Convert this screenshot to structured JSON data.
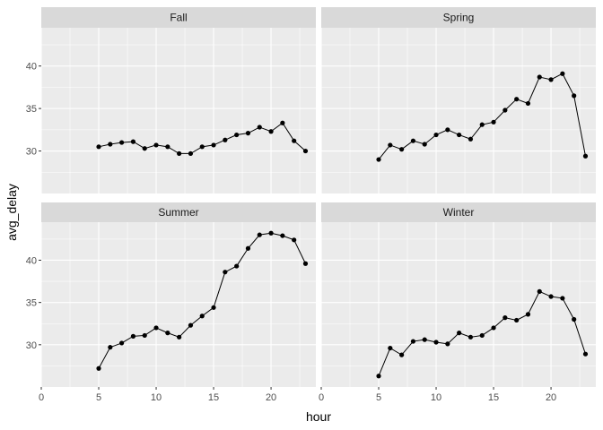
{
  "colors": {
    "panel_bg": "#EBEBEB",
    "strip_bg": "#D9D9D9",
    "grid_major": "#FFFFFF",
    "line": "#000000",
    "tick": "#333333"
  },
  "chart_data": {
    "type": "line",
    "facet": "wrap",
    "xlabel": "hour",
    "ylabel": "avg_delay",
    "xlim": [
      0,
      23.9
    ],
    "ylim": [
      25,
      44.5
    ],
    "xticks": [
      0,
      5,
      10,
      15,
      20
    ],
    "yticks": [
      30,
      35,
      40
    ],
    "grid": true,
    "markers": "points",
    "panels": [
      {
        "name": "Fall",
        "x": [
          5,
          6,
          7,
          8,
          9,
          10,
          11,
          12,
          13,
          14,
          15,
          16,
          17,
          18,
          19,
          20,
          21,
          22,
          23
        ],
        "y": [
          30.5,
          30.8,
          31.0,
          31.1,
          30.3,
          30.7,
          30.5,
          29.7,
          29.7,
          30.5,
          30.7,
          31.3,
          31.9,
          32.1,
          32.8,
          32.3,
          33.3,
          31.2,
          30.0
        ]
      },
      {
        "name": "Spring",
        "x": [
          5,
          6,
          7,
          8,
          9,
          10,
          11,
          12,
          13,
          14,
          15,
          16,
          17,
          18,
          19,
          20,
          21,
          22,
          23
        ],
        "y": [
          29.0,
          30.7,
          30.2,
          31.2,
          30.8,
          31.9,
          32.5,
          31.9,
          31.4,
          33.1,
          33.4,
          34.8,
          36.1,
          35.6,
          38.7,
          38.4,
          39.1,
          36.5,
          29.4
        ]
      },
      {
        "name": "Summer",
        "x": [
          5,
          6,
          7,
          8,
          9,
          10,
          11,
          12,
          13,
          14,
          15,
          16,
          17,
          18,
          19,
          20,
          21,
          22,
          23
        ],
        "y": [
          27.2,
          29.7,
          30.2,
          31.0,
          31.1,
          32.0,
          31.4,
          30.9,
          32.3,
          33.4,
          34.4,
          38.6,
          39.3,
          41.4,
          43.0,
          43.2,
          42.9,
          42.4,
          39.6
        ]
      },
      {
        "name": "Winter",
        "x": [
          5,
          6,
          7,
          8,
          9,
          10,
          11,
          12,
          13,
          14,
          15,
          16,
          17,
          18,
          19,
          20,
          21,
          22,
          23
        ],
        "y": [
          26.3,
          29.6,
          28.8,
          30.4,
          30.6,
          30.3,
          30.1,
          31.4,
          30.9,
          31.1,
          32.0,
          33.2,
          32.9,
          33.6,
          36.3,
          35.7,
          35.5,
          33.0,
          28.9
        ]
      }
    ]
  }
}
